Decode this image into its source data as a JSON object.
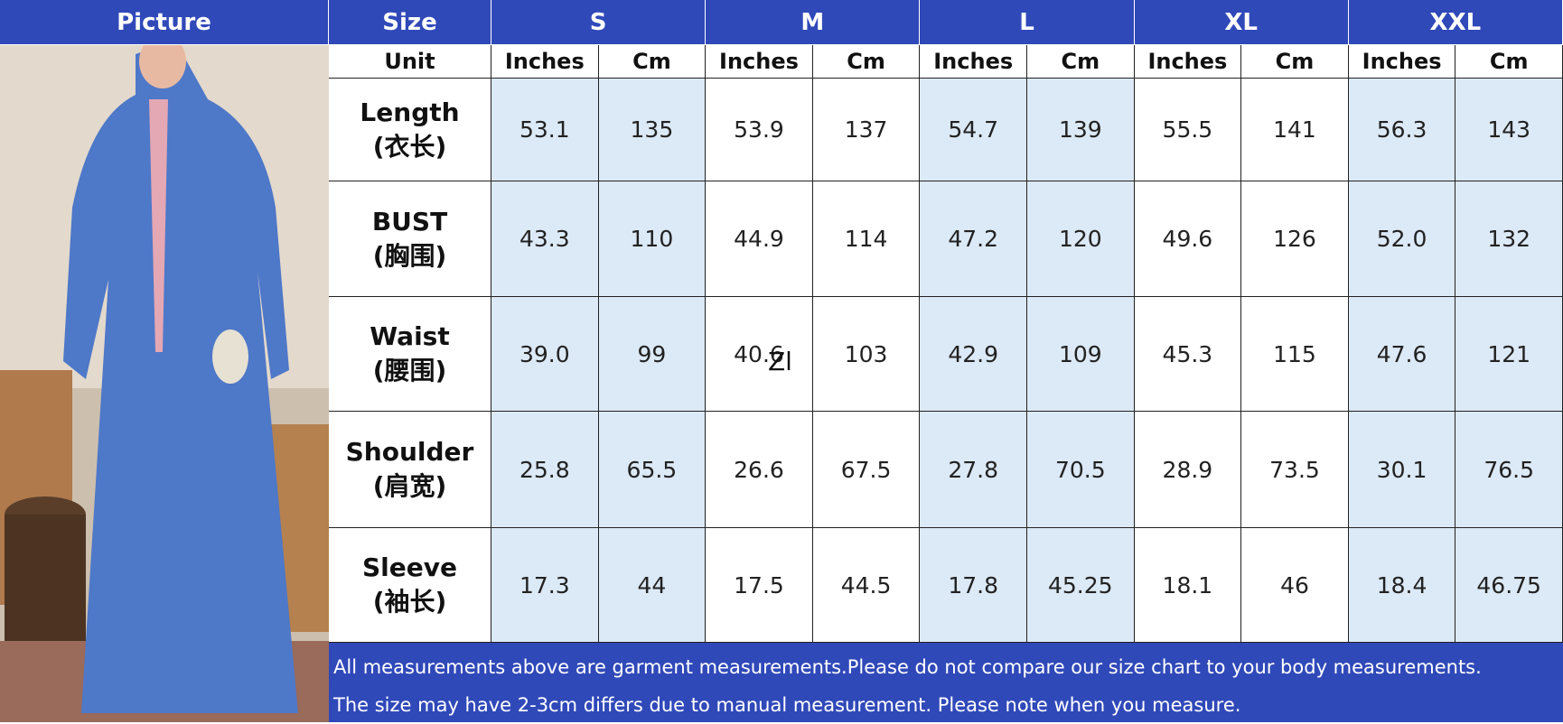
{
  "header": {
    "picture": "Picture",
    "size": "Size",
    "sizes": [
      "S",
      "M",
      "L",
      "XL",
      "XXL"
    ]
  },
  "unit_row": {
    "label": "Unit",
    "units": [
      "Inches",
      "Cm",
      "Inches",
      "Cm",
      "Inches",
      "Cm",
      "Inches",
      "Cm",
      "Inches",
      "Cm"
    ]
  },
  "rows": [
    {
      "label": "Length",
      "label_cn": "(衣长)",
      "values": [
        "53.1",
        "135",
        "53.9",
        "137",
        "54.7",
        "139",
        "55.5",
        "141",
        "56.3",
        "143"
      ]
    },
    {
      "label": "BUST",
      "label_cn": "(胸围)",
      "values": [
        "43.3",
        "110",
        "44.9",
        "114",
        "47.2",
        "120",
        "49.6",
        "126",
        "52.0",
        "132"
      ]
    },
    {
      "label": "Waist",
      "label_cn": "(腰围)",
      "values": [
        "39.0",
        "99",
        "40.6",
        "103",
        "42.9",
        "109",
        "45.3",
        "115",
        "47.6",
        "121"
      ]
    },
    {
      "label": "Shoulder",
      "label_cn": "(肩宽)",
      "values": [
        "25.8",
        "65.5",
        "26.6",
        "67.5",
        "27.8",
        "70.5",
        "28.9",
        "73.5",
        "30.1",
        "76.5"
      ]
    },
    {
      "label": "Sleeve",
      "label_cn": "(袖长)",
      "values": [
        "17.3",
        "44",
        "17.5",
        "44.5",
        "17.8",
        "45.25",
        "18.1",
        "46",
        "18.4",
        "46.75"
      ]
    }
  ],
  "stray_text": "Zl",
  "footer": [
    "All measurements above are garment measurements.Please do not compare our size chart to your body measurements.",
    "The size may have 2-3cm differs due to manual measurement. Please note when you measure."
  ]
}
